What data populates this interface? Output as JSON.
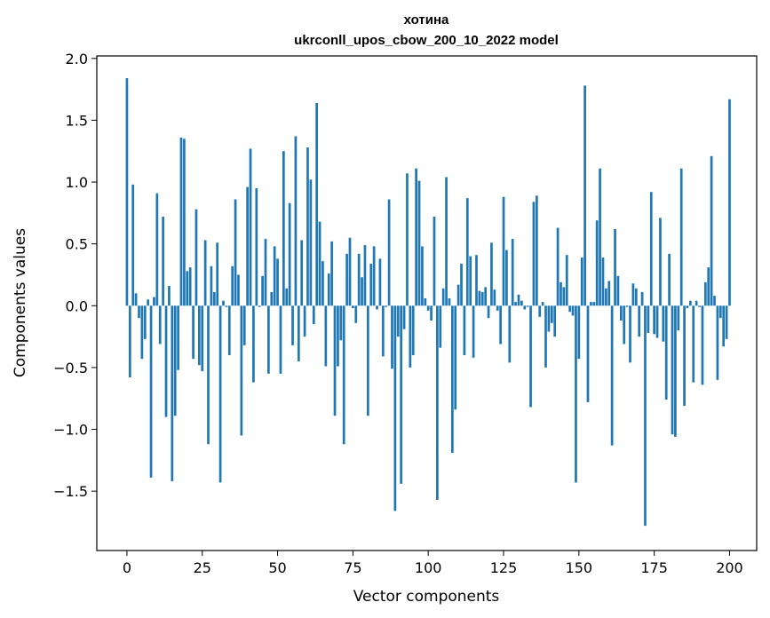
{
  "chart_data": {
    "type": "bar",
    "title": "хотина",
    "subtitle": "ukrconll_upos_cbow_200_10_2022 model",
    "xlabel": "Vector components",
    "ylabel": "Components values",
    "xlim": [
      -10,
      209
    ],
    "ylim": [
      -1.98,
      2.02
    ],
    "xticks": [
      0,
      25,
      50,
      75,
      100,
      125,
      150,
      175,
      200
    ],
    "yticks": [
      -1.5,
      -1.0,
      -0.5,
      0.0,
      0.5,
      1.0,
      1.5,
      2.0
    ],
    "ytick_labels": [
      "−1.5",
      "−1.0",
      "−0.5",
      "0.0",
      "0.5",
      "1.0",
      "1.5",
      "2.0"
    ],
    "grid": false,
    "color": "#1f77b4",
    "values": [
      1.84,
      -0.58,
      0.98,
      0.1,
      -0.1,
      -0.43,
      -0.27,
      0.05,
      -1.39,
      0.07,
      0.91,
      -0.31,
      0.72,
      -0.9,
      0.16,
      -1.42,
      -0.89,
      -0.52,
      1.36,
      1.35,
      0.28,
      0.31,
      -0.43,
      0.78,
      -0.48,
      -0.53,
      0.53,
      -1.12,
      0.32,
      0.11,
      0.51,
      -1.43,
      0.04,
      -0.01,
      -0.4,
      0.32,
      0.86,
      0.25,
      -1.05,
      -0.32,
      0.96,
      1.27,
      -0.62,
      0.95,
      -0.01,
      0.24,
      0.54,
      -0.55,
      0.11,
      0.48,
      0.38,
      -0.55,
      1.25,
      0.14,
      0.83,
      -0.32,
      1.37,
      -0.45,
      0.53,
      -0.25,
      1.28,
      1.02,
      -0.15,
      1.64,
      0.68,
      0.36,
      -0.49,
      0.26,
      0.52,
      -0.89,
      -0.49,
      -0.28,
      -1.12,
      0.42,
      0.55,
      -0.02,
      -0.14,
      0.42,
      0.23,
      0.49,
      -0.89,
      0.34,
      0.48,
      -0.03,
      0.38,
      -0.41,
      -0.01,
      0.86,
      -0.51,
      -1.66,
      -0.25,
      -1.44,
      -0.19,
      1.07,
      -0.5,
      -0.4,
      1.11,
      1.01,
      0.48,
      0.06,
      -0.04,
      -0.12,
      0.72,
      -1.57,
      -0.34,
      0.14,
      1.04,
      0.06,
      -1.19,
      -0.84,
      0.17,
      0.34,
      -0.4,
      0.87,
      0.4,
      -0.42,
      0.41,
      0.12,
      0.11,
      0.15,
      -0.1,
      0.51,
      0.13,
      -0.04,
      -0.31,
      0.88,
      0.45,
      -0.46,
      0.54,
      0.03,
      0.09,
      0.04,
      -0.03,
      -0.01,
      -0.82,
      0.84,
      0.89,
      -0.09,
      0.03,
      -0.5,
      -0.21,
      -0.14,
      -0.25,
      0.63,
      0.19,
      0.15,
      0.41,
      -0.05,
      -0.08,
      -1.43,
      -0.43,
      0.39,
      1.78,
      -0.78,
      0.03,
      0.03,
      0.69,
      1.11,
      0.39,
      0.14,
      0.2,
      -1.13,
      0.62,
      0.24,
      -0.12,
      -0.31,
      -0.01,
      -0.46,
      0.18,
      0.14,
      -0.25,
      0.11,
      -1.78,
      -0.22,
      0.92,
      -0.23,
      -0.26,
      0.71,
      -0.29,
      -0.76,
      0.42,
      -1.04,
      -1.06,
      -0.2,
      1.11,
      -0.81,
      -0.02,
      0.04,
      -0.62,
      0.04,
      -0.01,
      -0.64,
      0.19,
      0.31,
      1.21,
      0.08,
      -0.6,
      -0.1,
      -0.33,
      -0.27,
      1.67
    ]
  }
}
